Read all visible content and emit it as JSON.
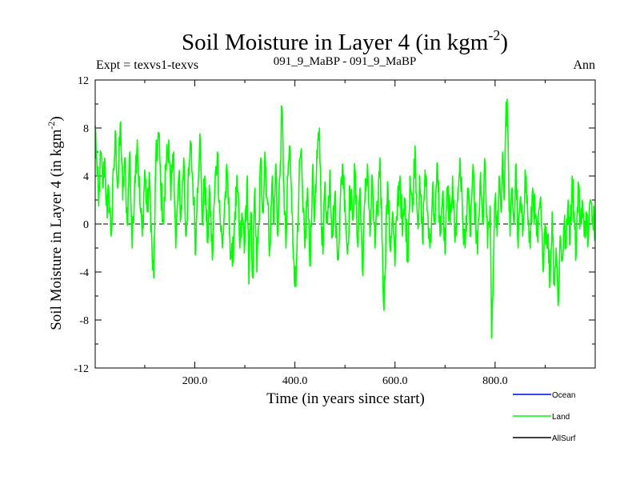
{
  "chart_data": {
    "type": "line",
    "title": "Soil Moisture in Layer 4 (in kgm",
    "title_sup": "-2",
    "title_tail": ")",
    "subtitle_left": "Expt = texvs1-texvs",
    "subtitle_center": "091_9_MaBP - 091_9_MaBP",
    "subtitle_right": "Ann",
    "xlabel": "Time (in years since start)",
    "ylabel": "Soil Moisture in Layer 4 (in kgm",
    "ylabel_sup": "-2",
    "ylabel_tail": ")",
    "xlim": [
      1,
      1000
    ],
    "ylim": [
      -12,
      12
    ],
    "x_ticks": [
      200,
      400,
      600,
      800
    ],
    "x_tick_labels": [
      "200.0",
      "400.0",
      "600.0",
      "800.0"
    ],
    "y_ticks": [
      -12,
      -8,
      -4,
      0,
      4,
      8,
      12
    ],
    "y_tick_labels": [
      "-12",
      "-8",
      "-4",
      "0",
      "4",
      "8",
      "12"
    ],
    "zero_line": "dashed",
    "legend": [
      {
        "name": "Ocean",
        "color": "#0000ff"
      },
      {
        "name": "Land",
        "color": "#00ff00"
      },
      {
        "name": "AllSurf",
        "color": "#000000"
      }
    ],
    "series": [
      {
        "name": "Land",
        "color": "#00ff00",
        "x_start": 1,
        "x_end": 1000,
        "anchors": [
          [
            1,
            8.2
          ],
          [
            5,
            4.0
          ],
          [
            8,
            1.5
          ],
          [
            12,
            6.0
          ],
          [
            16,
            3.0
          ],
          [
            20,
            5.5
          ],
          [
            25,
            0.5
          ],
          [
            28,
            3.0
          ],
          [
            33,
            -1.0
          ],
          [
            38,
            4.5
          ],
          [
            42,
            7.5
          ],
          [
            46,
            3.0
          ],
          [
            52,
            8.5
          ],
          [
            56,
            2.0
          ],
          [
            60,
            5.5
          ],
          [
            65,
            0.0
          ],
          [
            70,
            6.0
          ],
          [
            75,
            -2.0
          ],
          [
            80,
            4.0
          ],
          [
            85,
            7.0
          ],
          [
            90,
            2.0
          ],
          [
            95,
            -1.0
          ],
          [
            100,
            4.5
          ],
          [
            105,
            1.0
          ],
          [
            110,
            3.5
          ],
          [
            115,
            -3.0
          ],
          [
            118,
            -4.5
          ],
          [
            122,
            5.0
          ],
          [
            128,
            7.5
          ],
          [
            132,
            3.0
          ],
          [
            138,
            0.0
          ],
          [
            142,
            5.0
          ],
          [
            148,
            7.0
          ],
          [
            152,
            2.0
          ],
          [
            158,
            6.0
          ],
          [
            162,
            -2.0
          ],
          [
            168,
            4.0
          ],
          [
            172,
            0.5
          ],
          [
            178,
            5.5
          ],
          [
            182,
            -1.0
          ],
          [
            188,
            4.0
          ],
          [
            192,
            6.5
          ],
          [
            198,
            2.0
          ],
          [
            202,
            -2.0
          ],
          [
            205,
            3.0
          ],
          [
            210,
            7.5
          ],
          [
            215,
            0.0
          ],
          [
            220,
            4.0
          ],
          [
            225,
            -1.5
          ],
          [
            230,
            2.5
          ],
          [
            235,
            -3.0
          ],
          [
            240,
            3.0
          ],
          [
            245,
            6.0
          ],
          [
            250,
            1.0
          ],
          [
            255,
            -2.0
          ],
          [
            260,
            2.0
          ],
          [
            265,
            4.0
          ],
          [
            270,
            -1.0
          ],
          [
            275,
            -3.5
          ],
          [
            280,
            1.0
          ],
          [
            285,
            3.0
          ],
          [
            290,
            -2.0
          ],
          [
            295,
            0.5
          ],
          [
            300,
            -1.5
          ],
          [
            305,
            4.0
          ],
          [
            308,
            -5.0
          ],
          [
            312,
            1.0
          ],
          [
            316,
            -4.5
          ],
          [
            320,
            3.0
          ],
          [
            324,
            -4.0
          ],
          [
            328,
            0.0
          ],
          [
            332,
            5.5
          ],
          [
            336,
            1.0
          ],
          [
            340,
            6.0
          ],
          [
            345,
            2.0
          ],
          [
            350,
            -2.0
          ],
          [
            355,
            4.0
          ],
          [
            358,
            0.0
          ],
          [
            362,
            5.0
          ],
          [
            366,
            -1.0
          ],
          [
            370,
            4.0
          ],
          [
            374,
            9.7
          ],
          [
            378,
            3.0
          ],
          [
            382,
            -2.0
          ],
          [
            386,
            4.0
          ],
          [
            390,
            6.5
          ],
          [
            394,
            1.0
          ],
          [
            398,
            -3.0
          ],
          [
            402,
            -5.2
          ],
          [
            405,
            0.0
          ],
          [
            408,
            3.0
          ],
          [
            412,
            6.0
          ],
          [
            416,
            1.0
          ],
          [
            420,
            -2.0
          ],
          [
            425,
            3.0
          ],
          [
            430,
            -3.5
          ],
          [
            435,
            4.0
          ],
          [
            440,
            1.0
          ],
          [
            445,
            5.5
          ],
          [
            449,
            8.0
          ],
          [
            452,
            2.0
          ],
          [
            456,
            -2.5
          ],
          [
            460,
            3.5
          ],
          [
            465,
            0.0
          ],
          [
            470,
            4.5
          ],
          [
            475,
            -1.0
          ],
          [
            480,
            2.5
          ],
          [
            485,
            -3.0
          ],
          [
            490,
            1.0
          ],
          [
            495,
            5.0
          ],
          [
            500,
            2.0
          ],
          [
            505,
            -2.5
          ],
          [
            510,
            3.0
          ],
          [
            515,
            0.5
          ],
          [
            520,
            4.5
          ],
          [
            525,
            -1.5
          ],
          [
            530,
            3.0
          ],
          [
            535,
            -4.0
          ],
          [
            540,
            2.0
          ],
          [
            545,
            5.0
          ],
          [
            550,
            -1.0
          ],
          [
            555,
            3.5
          ],
          [
            560,
            -2.0
          ],
          [
            565,
            1.0
          ],
          [
            570,
            5.5
          ],
          [
            575,
            -2.0
          ],
          [
            578,
            -7.2
          ],
          [
            582,
            0.0
          ],
          [
            586,
            3.0
          ],
          [
            590,
            -2.0
          ],
          [
            595,
            1.0
          ],
          [
            600,
            -3.5
          ],
          [
            605,
            2.0
          ],
          [
            610,
            4.0
          ],
          [
            615,
            -1.0
          ],
          [
            620,
            2.0
          ],
          [
            625,
            -3.0
          ],
          [
            630,
            4.0
          ],
          [
            635,
            1.0
          ],
          [
            640,
            6.5
          ],
          [
            645,
            0.5
          ],
          [
            650,
            3.0
          ],
          [
            655,
            -1.5
          ],
          [
            660,
            4.5
          ],
          [
            665,
            1.0
          ],
          [
            670,
            -2.0
          ],
          [
            675,
            3.0
          ],
          [
            680,
            0.0
          ],
          [
            685,
            5.0
          ],
          [
            690,
            -1.0
          ],
          [
            695,
            2.5
          ],
          [
            700,
            -2.5
          ],
          [
            705,
            3.0
          ],
          [
            710,
            0.0
          ],
          [
            715,
            4.0
          ],
          [
            720,
            -1.5
          ],
          [
            725,
            2.0
          ],
          [
            730,
            5.5
          ],
          [
            735,
            0.5
          ],
          [
            740,
            -2.0
          ],
          [
            745,
            3.0
          ],
          [
            750,
            -1.0
          ],
          [
            755,
            4.0
          ],
          [
            760,
            1.0
          ],
          [
            765,
            -2.5
          ],
          [
            770,
            3.5
          ],
          [
            775,
            0.0
          ],
          [
            780,
            5.0
          ],
          [
            785,
            -2.0
          ],
          [
            790,
            1.5
          ],
          [
            793,
            -9.5
          ],
          [
            797,
            -3.0
          ],
          [
            800,
            2.0
          ],
          [
            804,
            -1.0
          ],
          [
            808,
            4.0
          ],
          [
            812,
            1.0
          ],
          [
            815,
            6.0
          ],
          [
            818,
            2.0
          ],
          [
            821,
            8.0
          ],
          [
            824,
            10.4
          ],
          [
            827,
            4.0
          ],
          [
            830,
            -1.0
          ],
          [
            834,
            3.0
          ],
          [
            838,
            0.0
          ],
          [
            842,
            5.0
          ],
          [
            846,
            -2.0
          ],
          [
            850,
            2.0
          ],
          [
            855,
            -1.0
          ],
          [
            860,
            4.5
          ],
          [
            865,
            1.0
          ],
          [
            870,
            -2.0
          ],
          [
            875,
            3.0
          ],
          [
            880,
            0.5
          ],
          [
            885,
            -1.5
          ],
          [
            890,
            2.0
          ],
          [
            895,
            -3.0
          ],
          [
            900,
            0.0
          ],
          [
            905,
            -1.0
          ],
          [
            910,
            -4.8
          ],
          [
            914,
            1.0
          ],
          [
            918,
            -5.0
          ],
          [
            922,
            -2.0
          ],
          [
            926,
            -6.8
          ],
          [
            930,
            -1.0
          ],
          [
            934,
            -3.0
          ],
          [
            938,
            0.0
          ],
          [
            942,
            -2.0
          ],
          [
            946,
            2.0
          ],
          [
            950,
            -1.0
          ],
          [
            954,
            4.0
          ],
          [
            958,
            1.0
          ],
          [
            962,
            -2.5
          ],
          [
            966,
            3.5
          ],
          [
            970,
            0.0
          ],
          [
            974,
            2.0
          ],
          [
            978,
            -1.0
          ],
          [
            982,
            1.0
          ],
          [
            986,
            -1.5
          ],
          [
            990,
            2.0
          ],
          [
            994,
            0.0
          ],
          [
            997,
            1.5
          ],
          [
            1000,
            -1.0
          ]
        ]
      }
    ]
  }
}
